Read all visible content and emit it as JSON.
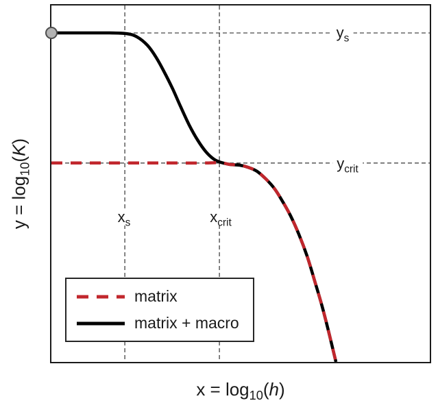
{
  "chart_data": {
    "type": "line",
    "title": "",
    "xlabel": "x = log10(h)",
    "ylabel": "y = log10(K)",
    "xlim": [
      0,
      1
    ],
    "ylim": [
      0,
      1
    ],
    "grid": false,
    "legend_position": "lower-left",
    "axis_color": "#1a1a1a",
    "background_color": "#ffffff",
    "reference_line_color": "#333333",
    "x_label": {
      "lead": "x",
      "eq": " = log",
      "sub": "10",
      "open": "(",
      "var": "h",
      "close": ")"
    },
    "y_label": {
      "lead": "y",
      "eq": " = log",
      "sub": "10",
      "open": "(",
      "var": "K",
      "close": ")"
    },
    "reference_lines": [
      {
        "id": "x_s",
        "orientation": "vertical",
        "value": 0.194,
        "label_main": "x",
        "label_sub": "s"
      },
      {
        "id": "x_crit",
        "orientation": "vertical",
        "value": 0.444,
        "label_main": "x",
        "label_sub": "crit"
      },
      {
        "id": "y_s",
        "orientation": "horizontal",
        "value": 0.923,
        "label_main": "y",
        "label_sub": "s"
      },
      {
        "id": "y_crit",
        "orientation": "horizontal",
        "value": 0.558,
        "label_main": "y",
        "label_sub": "crit"
      }
    ],
    "marker": {
      "x": 0.0,
      "y": 0.923,
      "radius": 8,
      "fill": "#b3b3b3",
      "stroke": "#4d4d4d"
    },
    "series": [
      {
        "name": "matrix",
        "color": "#c1272d",
        "line_style": "dashed",
        "line_width": 4.5,
        "points": [
          [
            0,
            0.558
          ],
          [
            0.08,
            0.558
          ],
          [
            0.16,
            0.558
          ],
          [
            0.24,
            0.558
          ],
          [
            0.32,
            0.558
          ],
          [
            0.4,
            0.558
          ],
          [
            0.447,
            0.559
          ],
          [
            0.471,
            0.554
          ],
          [
            0.498,
            0.552
          ],
          [
            0.52,
            0.546
          ],
          [
            0.543,
            0.535
          ],
          [
            0.567,
            0.513
          ],
          [
            0.589,
            0.487
          ],
          [
            0.61,
            0.452
          ],
          [
            0.632,
            0.41
          ],
          [
            0.654,
            0.358
          ],
          [
            0.676,
            0.296
          ],
          [
            0.697,
            0.223
          ],
          [
            0.716,
            0.154
          ],
          [
            0.734,
            0.079
          ],
          [
            0.752,
            0
          ]
        ]
      },
      {
        "name": "matrix + macro",
        "color": "#000000",
        "line_style": "solid",
        "line_width": 4.5,
        "points": [
          [
            0,
            0.923
          ],
          [
            0.045,
            0.923
          ],
          [
            0.1,
            0.923
          ],
          [
            0.154,
            0.923
          ],
          [
            0.199,
            0.921
          ],
          [
            0.226,
            0.912
          ],
          [
            0.254,
            0.888
          ],
          [
            0.277,
            0.854
          ],
          [
            0.299,
            0.812
          ],
          [
            0.321,
            0.765
          ],
          [
            0.342,
            0.715
          ],
          [
            0.364,
            0.665
          ],
          [
            0.386,
            0.623
          ],
          [
            0.408,
            0.59
          ],
          [
            0.429,
            0.569
          ],
          [
            0.447,
            0.56
          ],
          [
            0.471,
            0.554
          ],
          [
            0.498,
            0.552
          ],
          [
            0.52,
            0.546
          ],
          [
            0.543,
            0.535
          ],
          [
            0.567,
            0.513
          ],
          [
            0.589,
            0.487
          ],
          [
            0.61,
            0.452
          ],
          [
            0.632,
            0.41
          ],
          [
            0.654,
            0.358
          ],
          [
            0.676,
            0.296
          ],
          [
            0.697,
            0.223
          ],
          [
            0.716,
            0.154
          ],
          [
            0.734,
            0.079
          ],
          [
            0.752,
            0
          ]
        ]
      }
    ]
  }
}
